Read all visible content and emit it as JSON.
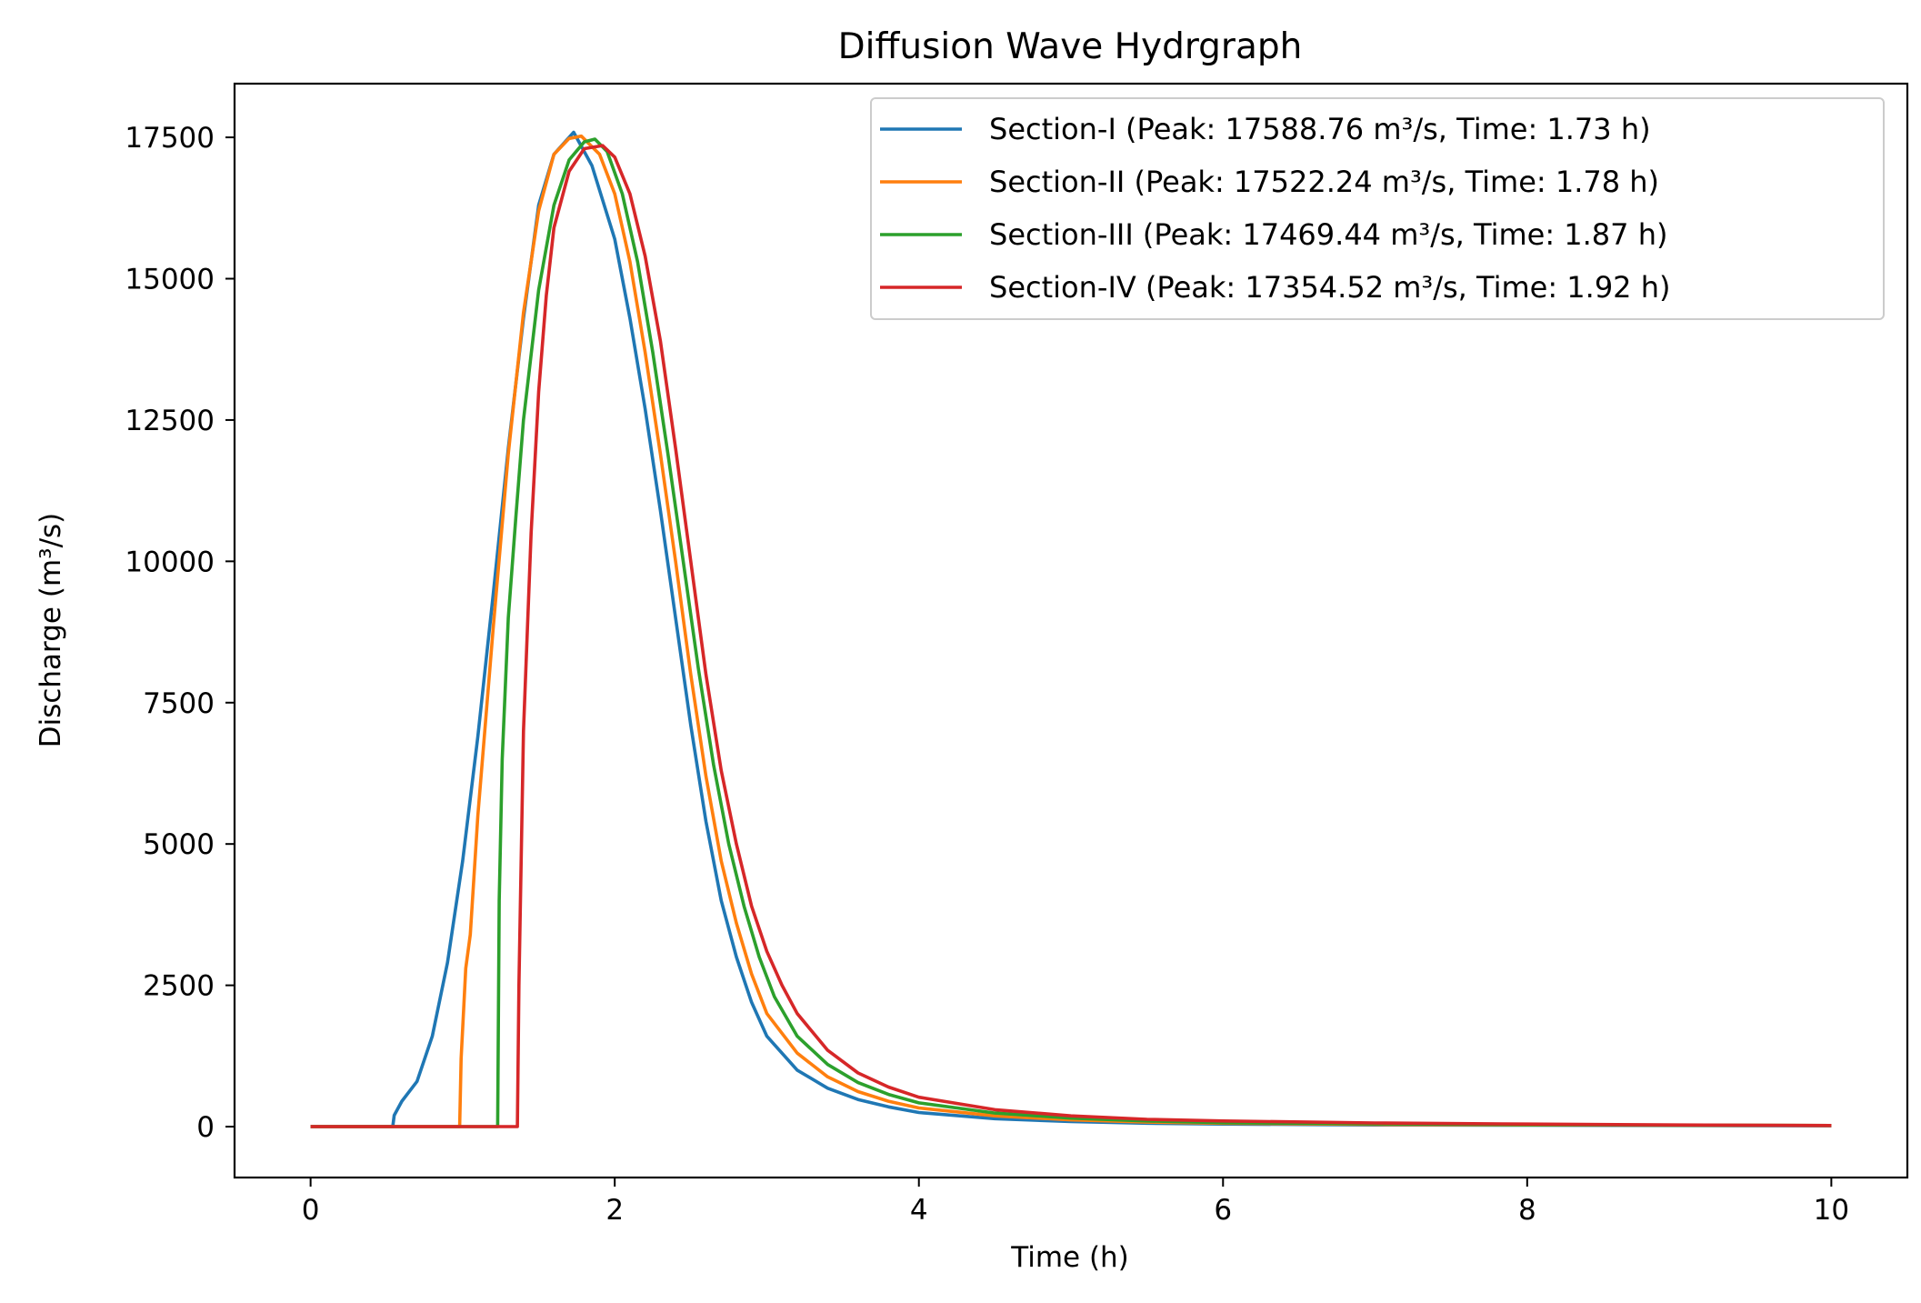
{
  "chart_data": {
    "type": "line",
    "title": "Diffusion Wave Hydrgraph",
    "xlabel": "Time (h)",
    "ylabel": "Discharge (m³/s)",
    "xlim": [
      -0.5,
      10.5
    ],
    "ylim": [
      -900,
      18450
    ],
    "xticks": [
      0,
      2,
      4,
      6,
      8,
      10
    ],
    "yticks": [
      0,
      2500,
      5000,
      7500,
      10000,
      12500,
      15000,
      17500
    ],
    "grid": false,
    "legend_position": "upper right",
    "series": [
      {
        "name": "Section-I (Peak: 17588.76 m³/s, Time: 1.73 h)",
        "color": "#1f77b4",
        "x": [
          0,
          0.54,
          0.55,
          0.6,
          0.7,
          0.8,
          0.9,
          1.0,
          1.1,
          1.2,
          1.3,
          1.4,
          1.5,
          1.6,
          1.73,
          1.85,
          2.0,
          2.1,
          2.2,
          2.3,
          2.4,
          2.5,
          2.6,
          2.7,
          2.8,
          2.9,
          3.0,
          3.2,
          3.4,
          3.6,
          3.8,
          4.0,
          4.5,
          5.0,
          5.5,
          6.0,
          7.0,
          8.0,
          9.0,
          10.0
        ],
        "y": [
          0,
          0,
          200,
          450,
          800,
          1600,
          2900,
          4700,
          6900,
          9400,
          12000,
          14300,
          16300,
          17200,
          17588.76,
          17000,
          15700,
          14300,
          12700,
          10900,
          9000,
          7100,
          5400,
          4000,
          3000,
          2200,
          1600,
          1000,
          680,
          480,
          350,
          250,
          140,
          90,
          60,
          45,
          30,
          25,
          20,
          15
        ]
      },
      {
        "name": "Section-II (Peak: 17522.24 m³/s, Time: 1.78 h)",
        "color": "#ff7f0e",
        "x": [
          0,
          0.98,
          0.99,
          1.02,
          1.05,
          1.1,
          1.2,
          1.3,
          1.4,
          1.5,
          1.6,
          1.7,
          1.78,
          1.9,
          2.0,
          2.1,
          2.2,
          2.3,
          2.4,
          2.5,
          2.6,
          2.7,
          2.8,
          2.9,
          3.0,
          3.2,
          3.4,
          3.6,
          3.8,
          4.0,
          4.5,
          5.0,
          5.5,
          6.0,
          7.0,
          8.0,
          9.0,
          10.0
        ],
        "y": [
          0,
          0,
          1200,
          2800,
          3400,
          5500,
          8800,
          11900,
          14400,
          16200,
          17200,
          17480,
          17522.24,
          17200,
          16500,
          15300,
          13700,
          11900,
          10000,
          8000,
          6200,
          4700,
          3600,
          2700,
          2000,
          1300,
          880,
          620,
          450,
          330,
          190,
          120,
          80,
          60,
          40,
          30,
          25,
          20
        ]
      },
      {
        "name": "Section-III (Peak: 17469.44 m³/s, Time: 1.87 h)",
        "color": "#2ca02c",
        "x": [
          0,
          1.23,
          1.24,
          1.26,
          1.3,
          1.35,
          1.4,
          1.5,
          1.6,
          1.7,
          1.8,
          1.87,
          1.95,
          2.05,
          2.15,
          2.25,
          2.35,
          2.45,
          2.55,
          2.65,
          2.75,
          2.85,
          2.95,
          3.05,
          3.2,
          3.4,
          3.6,
          3.8,
          4.0,
          4.5,
          5.0,
          5.5,
          6.0,
          7.0,
          8.0,
          9.0,
          10.0
        ],
        "y": [
          0,
          0,
          4000,
          6500,
          9000,
          10800,
          12500,
          14800,
          16300,
          17100,
          17420,
          17469.44,
          17250,
          16500,
          15300,
          13700,
          11900,
          10000,
          8100,
          6400,
          5000,
          3900,
          3000,
          2300,
          1600,
          1100,
          780,
          570,
          420,
          240,
          150,
          100,
          70,
          50,
          35,
          25,
          20
        ]
      },
      {
        "name": "Section-IV (Peak: 17354.52 m³/s, Time: 1.92 h)",
        "color": "#d62728",
        "x": [
          0,
          1.36,
          1.37,
          1.4,
          1.45,
          1.5,
          1.55,
          1.6,
          1.7,
          1.8,
          1.92,
          2.0,
          2.1,
          2.2,
          2.3,
          2.4,
          2.5,
          2.6,
          2.7,
          2.8,
          2.9,
          3.0,
          3.1,
          3.2,
          3.4,
          3.6,
          3.8,
          4.0,
          4.5,
          5.0,
          5.5,
          6.0,
          7.0,
          8.0,
          9.0,
          10.0
        ],
        "y": [
          0,
          0,
          2500,
          7000,
          10500,
          13000,
          14700,
          15900,
          16900,
          17300,
          17354.52,
          17150,
          16500,
          15400,
          13900,
          12000,
          10000,
          8000,
          6300,
          5000,
          3900,
          3100,
          2500,
          2000,
          1350,
          950,
          700,
          520,
          300,
          190,
          130,
          100,
          65,
          45,
          30,
          20
        ]
      }
    ]
  }
}
